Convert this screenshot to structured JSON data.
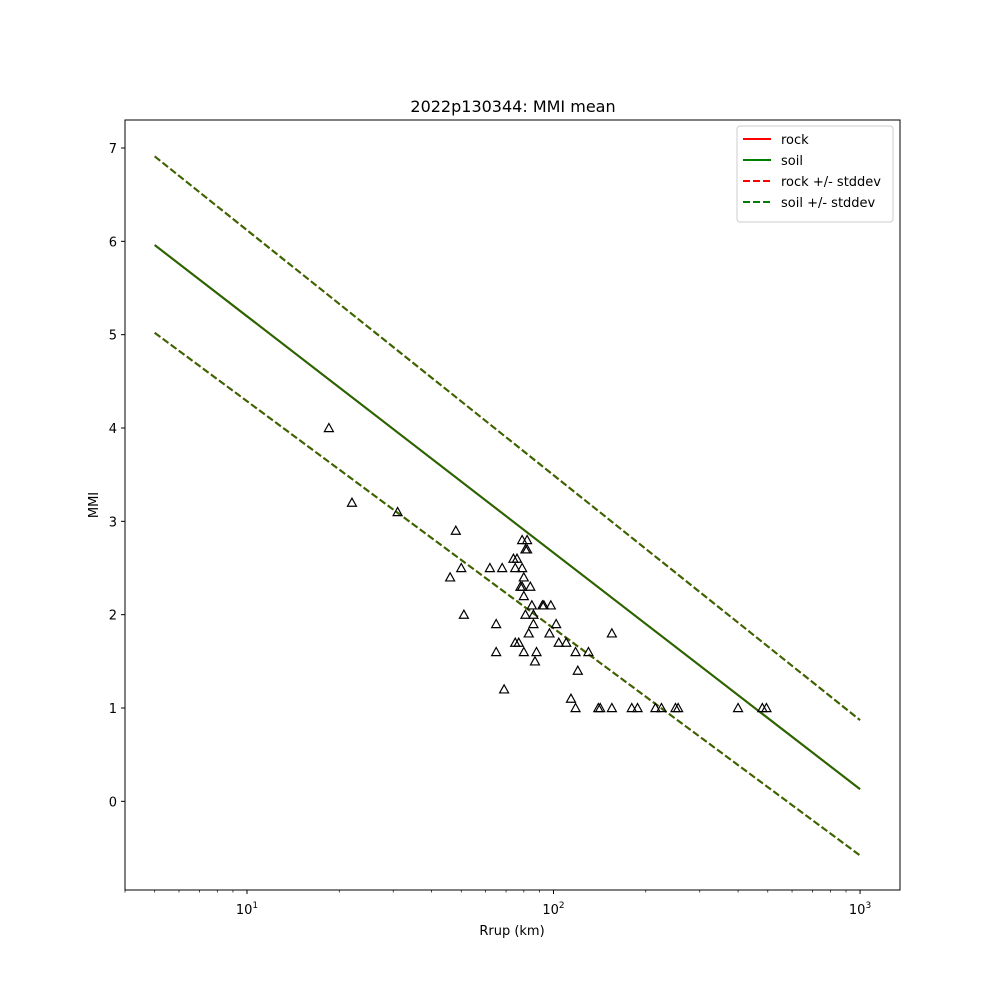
{
  "chart_data": {
    "type": "scatter",
    "title": "2022p130344: MMI mean",
    "xlabel": "Rrup (km)",
    "ylabel": "MMI",
    "xscale": "log",
    "xlim": [
      4.0,
      1350
    ],
    "ylim": [
      -0.95,
      7.3
    ],
    "xticks_major": [
      {
        "value": 10,
        "base": "10",
        "exp": "1"
      },
      {
        "value": 100,
        "base": "10",
        "exp": "2"
      },
      {
        "value": 1000,
        "base": "10",
        "exp": "3"
      }
    ],
    "yticks": [
      0,
      1,
      2,
      3,
      4,
      5,
      6,
      7
    ],
    "grid": false,
    "legend_position": "top-right",
    "legend": [
      {
        "label": "rock",
        "color": "#ff0000",
        "style": "solid"
      },
      {
        "label": "soil",
        "color": "#008000",
        "style": "solid"
      },
      {
        "label": "rock +/- stddev",
        "color": "#ff0000",
        "style": "dashed"
      },
      {
        "label": "soil +/- stddev",
        "color": "#008000",
        "style": "dashed"
      }
    ],
    "lines": [
      {
        "name": "rock",
        "color": "#ff0000",
        "style": "solid",
        "x": [
          5,
          1000
        ],
        "y": [
          5.96,
          0.13
        ]
      },
      {
        "name": "rock +/- stddev",
        "color": "#ff0000",
        "style": "dashed",
        "x": [
          5,
          1000
        ],
        "y": [
          6.91,
          0.87
        ]
      },
      {
        "name": "rock +/- stddev",
        "color": "#ff0000",
        "style": "dashed",
        "x": [
          5,
          1000
        ],
        "y": [
          5.02,
          -0.58
        ]
      },
      {
        "name": "soil",
        "color": "#1f6b00",
        "style": "solid",
        "x": [
          5,
          1000
        ],
        "y": [
          5.96,
          0.13
        ]
      },
      {
        "name": "soil +/- stddev",
        "color": "#2f6b00",
        "style": "dashed",
        "x": [
          5,
          1000
        ],
        "y": [
          6.91,
          0.87
        ]
      },
      {
        "name": "soil +/- stddev",
        "color": "#2f6b00",
        "style": "dashed",
        "x": [
          5,
          1000
        ],
        "y": [
          5.02,
          -0.58
        ]
      }
    ],
    "points": {
      "marker": "triangle-open",
      "color": "#000000",
      "x": [
        18.5,
        22,
        31,
        46,
        48,
        50,
        51,
        62,
        65,
        65,
        68,
        69,
        74,
        75,
        75,
        76,
        77,
        78,
        79,
        79,
        79,
        80,
        80,
        80,
        81,
        81,
        82,
        82,
        83,
        84,
        85,
        86,
        86,
        87,
        88,
        92,
        93,
        97,
        98,
        102,
        104,
        110,
        114,
        118,
        118,
        120,
        130,
        140,
        142,
        155,
        155,
        180,
        188,
        215,
        225,
        250,
        255,
        400,
        480,
        495
      ],
      "y": [
        4.0,
        3.2,
        3.1,
        2.4,
        2.9,
        2.5,
        2.0,
        2.5,
        1.6,
        1.9,
        2.5,
        1.2,
        2.6,
        2.5,
        1.7,
        2.6,
        1.7,
        2.3,
        2.3,
        2.8,
        2.5,
        1.6,
        2.4,
        2.2,
        2.0,
        2.7,
        2.8,
        2.7,
        1.8,
        2.3,
        2.1,
        1.9,
        2.0,
        1.5,
        1.6,
        2.1,
        2.1,
        1.8,
        2.1,
        1.9,
        1.7,
        1.7,
        1.1,
        1.6,
        1.0,
        1.4,
        1.6,
        1.0,
        1.0,
        1.8,
        1.0,
        1.0,
        1.0,
        1.0,
        1.0,
        1.0,
        1.0,
        1.0,
        1.0,
        1.0
      ]
    }
  }
}
